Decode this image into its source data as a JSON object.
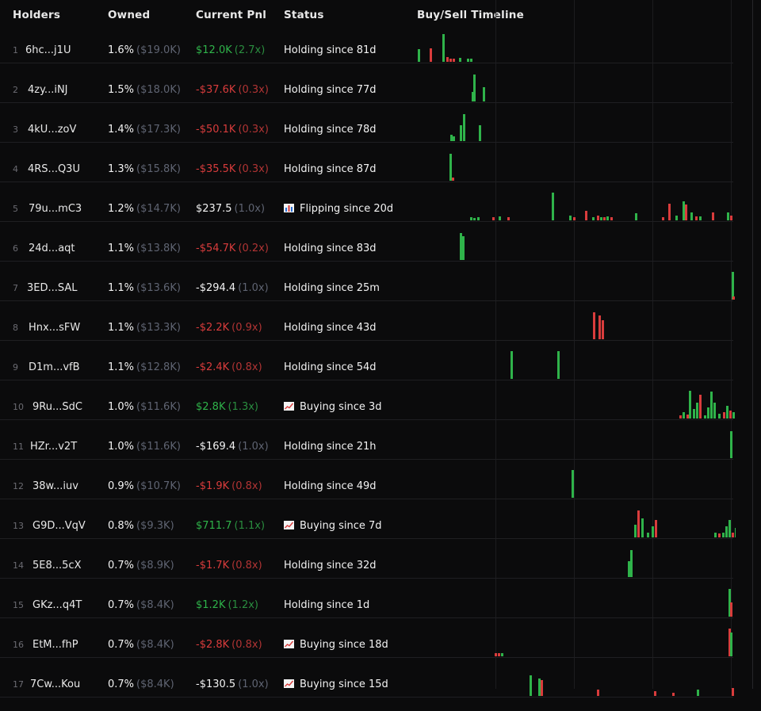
{
  "columns": {
    "holders": "Holders",
    "owned": "Owned",
    "pnl": "Current Pnl",
    "status": "Status",
    "timeline": "Buy/Sell Timeline"
  },
  "colors": {
    "buy": "#2fb34a",
    "sell": "#d93c3c",
    "bg": "#0b0b0c"
  },
  "rows": [
    {
      "rank": "1",
      "holder": "6hc...j1U",
      "pct": "1.6%",
      "usd": "($19.0K)",
      "pnl": "$12.0K",
      "mult": "(2.7x)",
      "tone": "pos",
      "icon": "",
      "status": "Holding since 81d",
      "bars": [
        [
          0,
          2,
          16,
          "buy"
        ],
        [
          1,
          17,
          17,
          "sell"
        ],
        [
          2,
          33,
          35,
          "buy"
        ],
        [
          3,
          38,
          6,
          "sell"
        ],
        [
          4,
          42,
          4,
          "sell"
        ],
        [
          5,
          46,
          4,
          "sell"
        ],
        [
          6,
          54,
          5,
          "buy"
        ],
        [
          7,
          64,
          4,
          "buy"
        ],
        [
          8,
          68,
          4,
          "buy"
        ]
      ]
    },
    {
      "rank": "2",
      "holder": "4zy...iNJ",
      "pct": "1.5%",
      "usd": "($18.0K)",
      "pnl": "-$37.6K",
      "mult": "(0.3x)",
      "tone": "neg",
      "icon": "",
      "status": "Holding since 77d",
      "bars": [
        [
          0,
          70,
          12,
          "buy"
        ],
        [
          1,
          72,
          34,
          "buy"
        ],
        [
          2,
          84,
          18,
          "buy"
        ]
      ]
    },
    {
      "rank": "3",
      "holder": "4kU...zoV",
      "pct": "1.4%",
      "usd": "($17.3K)",
      "pnl": "-$50.1K",
      "mult": "(0.3x)",
      "tone": "neg",
      "icon": "",
      "status": "Holding since 78d",
      "bars": [
        [
          0,
          43,
          8,
          "buy"
        ],
        [
          1,
          46,
          6,
          "buy"
        ],
        [
          2,
          55,
          20,
          "buy"
        ],
        [
          3,
          59,
          34,
          "buy"
        ],
        [
          4,
          79,
          20,
          "buy"
        ]
      ]
    },
    {
      "rank": "4",
      "holder": "4RS...Q3U",
      "pct": "1.3%",
      "usd": "($15.8K)",
      "pnl": "-$35.5K",
      "mult": "(0.3x)",
      "tone": "neg",
      "icon": "",
      "status": "Holding since 87d",
      "bars": [
        [
          0,
          42,
          34,
          "buy"
        ],
        [
          1,
          45,
          4,
          "sell"
        ]
      ]
    },
    {
      "rank": "5",
      "holder": "79u...mC3",
      "pct": "1.2%",
      "usd": "($14.7K)",
      "pnl": "$237.5",
      "mult": "(1.0x)",
      "tone": "neu",
      "icon": "chart",
      "status": "Flipping since 20d",
      "bars": [
        [
          0,
          68,
          4,
          "buy"
        ],
        [
          1,
          72,
          3,
          "buy"
        ],
        [
          2,
          77,
          4,
          "buy"
        ],
        [
          3,
          96,
          4,
          "sell"
        ],
        [
          4,
          104,
          5,
          "buy"
        ],
        [
          5,
          115,
          4,
          "sell"
        ],
        [
          6,
          171,
          35,
          "buy"
        ],
        [
          7,
          193,
          6,
          "buy"
        ],
        [
          8,
          198,
          4,
          "sell"
        ],
        [
          9,
          213,
          12,
          "sell"
        ],
        [
          10,
          222,
          4,
          "buy"
        ],
        [
          11,
          228,
          6,
          "sell"
        ],
        [
          12,
          232,
          4,
          "buy"
        ],
        [
          13,
          236,
          4,
          "sell"
        ],
        [
          14,
          240,
          5,
          "buy"
        ],
        [
          15,
          245,
          4,
          "sell"
        ],
        [
          16,
          276,
          9,
          "buy"
        ],
        [
          17,
          310,
          4,
          "sell"
        ],
        [
          18,
          318,
          21,
          "sell"
        ],
        [
          19,
          327,
          6,
          "buy"
        ],
        [
          20,
          336,
          24,
          "buy"
        ],
        [
          21,
          339,
          20,
          "sell"
        ],
        [
          22,
          346,
          10,
          "buy"
        ],
        [
          23,
          352,
          5,
          "sell"
        ],
        [
          24,
          357,
          5,
          "buy"
        ],
        [
          25,
          373,
          10,
          "sell"
        ],
        [
          26,
          392,
          10,
          "buy"
        ],
        [
          27,
          396,
          6,
          "sell"
        ]
      ]
    },
    {
      "rank": "6",
      "holder": "24d...aqt",
      "pct": "1.1%",
      "usd": "($13.8K)",
      "pnl": "-$54.7K",
      "mult": "(0.2x)",
      "tone": "neg",
      "icon": "",
      "status": "Holding since 83d",
      "bars": [
        [
          0,
          55,
          34,
          "buy"
        ],
        [
          1,
          58,
          30,
          "buy"
        ]
      ]
    },
    {
      "rank": "7",
      "holder": "3ED...SAL",
      "pct": "1.1%",
      "usd": "($13.6K)",
      "pnl": "-$294.4",
      "mult": "(1.0x)",
      "tone": "neu",
      "icon": "",
      "status": "Holding since 25m",
      "bars": [
        [
          0,
          398,
          35,
          "buy"
        ],
        [
          1,
          399,
          4,
          "sell"
        ]
      ]
    },
    {
      "rank": "8",
      "holder": "Hnx...sFW",
      "pct": "1.1%",
      "usd": "($13.3K)",
      "pnl": "-$2.2K",
      "mult": "(0.9x)",
      "tone": "neg",
      "icon": "",
      "status": "Holding since 43d",
      "bars": [
        [
          0,
          223,
          34,
          "sell"
        ],
        [
          1,
          230,
          30,
          "sell"
        ],
        [
          2,
          234,
          24,
          "sell"
        ]
      ]
    },
    {
      "rank": "9",
      "holder": "D1m...vfB",
      "pct": "1.1%",
      "usd": "($12.8K)",
      "pnl": "-$2.4K",
      "mult": "(0.8x)",
      "tone": "neg",
      "icon": "",
      "status": "Holding since 54d",
      "bars": [
        [
          0,
          119,
          35,
          "buy"
        ],
        [
          1,
          178,
          35,
          "buy"
        ]
      ]
    },
    {
      "rank": "10",
      "holder": "9Ru...SdC",
      "pct": "1.0%",
      "usd": "($11.6K)",
      "pnl": "$2.8K",
      "mult": "(1.3x)",
      "tone": "pos",
      "icon": "trend",
      "status": "Buying since 3d",
      "bars": [
        [
          0,
          332,
          4,
          "sell"
        ],
        [
          1,
          336,
          8,
          "buy"
        ],
        [
          2,
          341,
          5,
          "sell"
        ],
        [
          3,
          344,
          35,
          "buy"
        ],
        [
          4,
          349,
          12,
          "buy"
        ],
        [
          5,
          353,
          20,
          "buy"
        ],
        [
          6,
          357,
          30,
          "sell"
        ],
        [
          7,
          363,
          4,
          "buy"
        ],
        [
          8,
          367,
          14,
          "buy"
        ],
        [
          9,
          371,
          34,
          "buy"
        ],
        [
          10,
          375,
          20,
          "buy"
        ],
        [
          11,
          381,
          6,
          "buy"
        ],
        [
          12,
          387,
          8,
          "sell"
        ],
        [
          13,
          391,
          16,
          "buy"
        ],
        [
          14,
          395,
          10,
          "sell"
        ],
        [
          15,
          399,
          8,
          "buy"
        ]
      ]
    },
    {
      "rank": "11",
      "holder": "HZr...v2T",
      "pct": "1.0%",
      "usd": "($11.6K)",
      "pnl": "-$169.4",
      "mult": "(1.0x)",
      "tone": "neu",
      "icon": "",
      "status": "Holding since 21h",
      "bars": [
        [
          0,
          396,
          34,
          "buy"
        ]
      ]
    },
    {
      "rank": "12",
      "holder": "38w...iuv",
      "pct": "0.9%",
      "usd": "($10.7K)",
      "pnl": "-$1.9K",
      "mult": "(0.8x)",
      "tone": "neg",
      "icon": "",
      "status": "Holding since 49d",
      "bars": [
        [
          0,
          196,
          35,
          "buy"
        ]
      ]
    },
    {
      "rank": "13",
      "holder": "G9D...VqV",
      "pct": "0.8%",
      "usd": "($9.3K)",
      "pnl": "$711.7",
      "mult": "(1.1x)",
      "tone": "pos",
      "icon": "trend",
      "status": "Buying since 7d",
      "bars": [
        [
          0,
          275,
          16,
          "buy"
        ],
        [
          1,
          279,
          34,
          "sell"
        ],
        [
          2,
          284,
          24,
          "buy"
        ],
        [
          3,
          291,
          6,
          "buy"
        ],
        [
          4,
          297,
          14,
          "buy"
        ],
        [
          5,
          301,
          22,
          "sell"
        ],
        [
          6,
          376,
          6,
          "buy"
        ],
        [
          7,
          381,
          5,
          "sell"
        ],
        [
          8,
          386,
          6,
          "buy"
        ],
        [
          9,
          390,
          14,
          "buy"
        ],
        [
          10,
          394,
          22,
          "buy"
        ],
        [
          11,
          398,
          6,
          "sell"
        ],
        [
          12,
          402,
          12,
          "buy"
        ]
      ]
    },
    {
      "rank": "14",
      "holder": "5E8...5cX",
      "pct": "0.7%",
      "usd": "($8.9K)",
      "pnl": "-$1.7K",
      "mult": "(0.8x)",
      "tone": "neg",
      "icon": "",
      "status": "Holding since 32d",
      "bars": [
        [
          0,
          267,
          20,
          "buy"
        ],
        [
          1,
          270,
          34,
          "buy"
        ]
      ]
    },
    {
      "rank": "15",
      "holder": "GKz...q4T",
      "pct": "0.7%",
      "usd": "($8.4K)",
      "pnl": "$1.2K",
      "mult": "(1.2x)",
      "tone": "pos",
      "icon": "",
      "status": "Holding since 1d",
      "bars": [
        [
          0,
          394,
          35,
          "buy"
        ],
        [
          1,
          396,
          18,
          "sell"
        ]
      ]
    },
    {
      "rank": "16",
      "holder": "EtM...fhP",
      "pct": "0.7%",
      "usd": "($8.4K)",
      "pnl": "-$2.8K",
      "mult": "(0.8x)",
      "tone": "neg",
      "icon": "trend",
      "status": "Buying since 18d",
      "bars": [
        [
          0,
          99,
          4,
          "sell"
        ],
        [
          1,
          103,
          4,
          "sell"
        ],
        [
          2,
          107,
          4,
          "buy"
        ],
        [
          3,
          394,
          35,
          "sell"
        ],
        [
          4,
          396,
          30,
          "buy"
        ]
      ]
    },
    {
      "rank": "17",
      "holder": "7Cw...Kou",
      "pct": "0.7%",
      "usd": "($8.4K)",
      "pnl": "-$130.5",
      "mult": "(1.0x)",
      "tone": "neu",
      "icon": "trend",
      "status": "Buying since 15d",
      "bars": [
        [
          0,
          143,
          26,
          "buy"
        ],
        [
          1,
          154,
          22,
          "buy"
        ],
        [
          2,
          157,
          20,
          "sell"
        ],
        [
          3,
          228,
          8,
          "sell"
        ],
        [
          4,
          300,
          6,
          "sell"
        ],
        [
          5,
          323,
          4,
          "sell"
        ],
        [
          6,
          354,
          8,
          "buy"
        ],
        [
          7,
          398,
          10,
          "sell"
        ]
      ]
    }
  ]
}
